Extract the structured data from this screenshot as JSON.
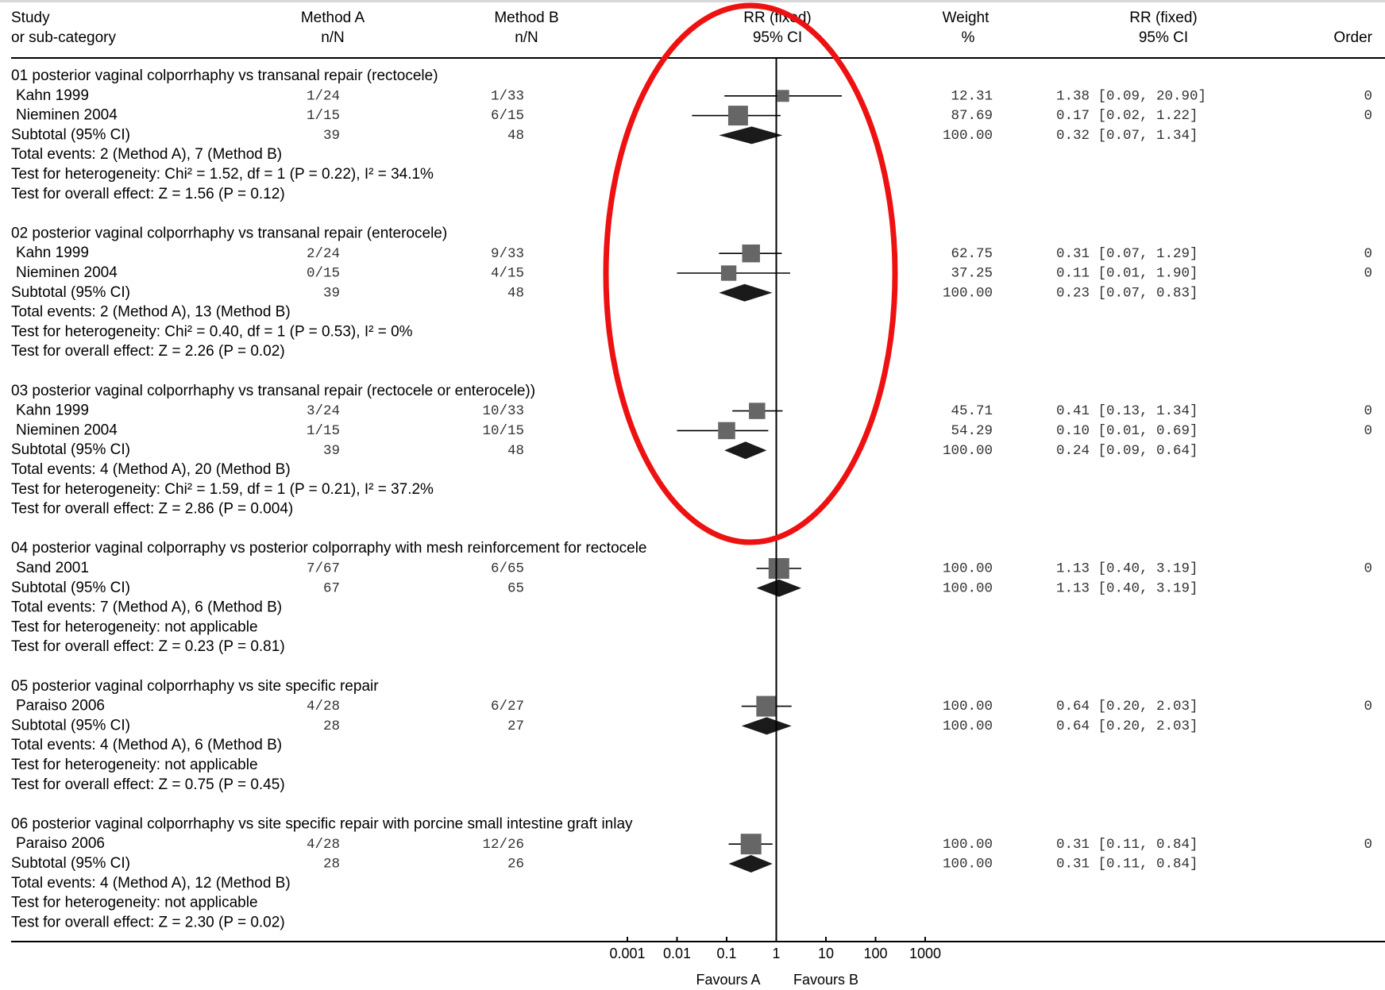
{
  "header": {
    "study": [
      "Study",
      "or sub-category"
    ],
    "method_a": [
      "Method A",
      "n/N"
    ],
    "method_b": [
      "Method B",
      "n/N"
    ],
    "rr_plot": [
      "RR (fixed)",
      "95% CI"
    ],
    "weight": [
      "Weight",
      "%"
    ],
    "rr_text": [
      "RR (fixed)",
      "95% CI"
    ],
    "order": "Order"
  },
  "axis": {
    "ticks": [
      "0.001",
      "0.01",
      "0.1",
      "1",
      "10",
      "100",
      "1000"
    ],
    "tick_values": [
      0.001,
      0.01,
      0.1,
      1,
      10,
      100,
      1000
    ],
    "favours_a": "Favours A",
    "favours_b": "Favours B"
  },
  "colors": {
    "square": "#666666",
    "diamond": "#1a1a1a",
    "annotation_ellipse": "#ee1111"
  },
  "chart_data": {
    "type": "forest",
    "scale": "log",
    "xlim": [
      0.001,
      1000
    ],
    "null_line": 1,
    "groups": [
      {
        "title": "01 posterior vaginal colporrhaphy vs transanal repair (rectocele)",
        "studies": [
          {
            "name": "Kahn 1999",
            "a": "1/24",
            "b": "1/33",
            "rr": 1.38,
            "lo": 0.09,
            "hi": 20.9,
            "weight": 12.31,
            "weight_txt": "12.31",
            "ci_txt": "1.38 [0.09, 20.90]",
            "order": "0"
          },
          {
            "name": "Nieminen 2004",
            "a": "1/15",
            "b": "6/15",
            "rr": 0.17,
            "lo": 0.02,
            "hi": 1.22,
            "weight": 87.69,
            "weight_txt": "87.69",
            "ci_txt": "0.17 [0.02, 1.22]",
            "order": "0"
          }
        ],
        "subtotal": {
          "label": "Subtotal (95% CI)",
          "a": "39",
          "b": "48",
          "rr": 0.32,
          "lo": 0.07,
          "hi": 1.34,
          "weight_txt": "100.00",
          "ci_txt": "0.32 [0.07, 1.34]"
        },
        "notes": [
          "Total events: 2 (Method A), 7 (Method B)",
          "Test for heterogeneity: Chi² = 1.52, df = 1 (P = 0.22), I² = 34.1%",
          "Test for overall effect: Z = 1.56 (P = 0.12)"
        ]
      },
      {
        "title": "02 posterior vaginal colporrhaphy vs transanal repair (enterocele)",
        "studies": [
          {
            "name": "Kahn 1999",
            "a": "2/24",
            "b": "9/33",
            "rr": 0.31,
            "lo": 0.07,
            "hi": 1.29,
            "weight": 62.75,
            "weight_txt": "62.75",
            "ci_txt": "0.31 [0.07, 1.29]",
            "order": "0"
          },
          {
            "name": "Nieminen 2004",
            "a": "0/15",
            "b": "4/15",
            "rr": 0.11,
            "lo": 0.01,
            "hi": 1.9,
            "weight": 37.25,
            "weight_txt": "37.25",
            "ci_txt": "0.11 [0.01, 1.90]",
            "order": "0"
          }
        ],
        "subtotal": {
          "label": "Subtotal (95% CI)",
          "a": "39",
          "b": "48",
          "rr": 0.23,
          "lo": 0.07,
          "hi": 0.83,
          "weight_txt": "100.00",
          "ci_txt": "0.23 [0.07, 0.83]"
        },
        "notes": [
          "Total events: 2 (Method A), 13 (Method B)",
          "Test for heterogeneity: Chi² = 0.40, df = 1 (P = 0.53), I² = 0%",
          "Test for overall effect: Z = 2.26 (P = 0.02)"
        ]
      },
      {
        "title": "03 posterior vaginal colporrhaphy vs transanal repair (rectocele or enterocele))",
        "studies": [
          {
            "name": "Kahn 1999",
            "a": "3/24",
            "b": "10/33",
            "rr": 0.41,
            "lo": 0.13,
            "hi": 1.34,
            "weight": 45.71,
            "weight_txt": "45.71",
            "ci_txt": "0.41 [0.13, 1.34]",
            "order": "0"
          },
          {
            "name": "Nieminen 2004",
            "a": "1/15",
            "b": "10/15",
            "rr": 0.1,
            "lo": 0.01,
            "hi": 0.69,
            "weight": 54.29,
            "weight_txt": "54.29",
            "ci_txt": "0.10 [0.01, 0.69]",
            "order": "0"
          }
        ],
        "subtotal": {
          "label": "Subtotal (95% CI)",
          "a": "39",
          "b": "48",
          "rr": 0.24,
          "lo": 0.09,
          "hi": 0.64,
          "weight_txt": "100.00",
          "ci_txt": "0.24 [0.09, 0.64]"
        },
        "notes": [
          "Total events: 4 (Method A), 20 (Method B)",
          "Test for heterogeneity: Chi² = 1.59, df = 1 (P = 0.21), I² = 37.2%",
          "Test for overall effect: Z = 2.86 (P = 0.004)"
        ]
      },
      {
        "title": "04 posterior vaginal colporraphy vs posterior colporraphy with mesh reinforcement for rectocele",
        "studies": [
          {
            "name": "Sand 2001",
            "a": "7/67",
            "b": "6/65",
            "rr": 1.13,
            "lo": 0.4,
            "hi": 3.19,
            "weight": 100.0,
            "weight_txt": "100.00",
            "ci_txt": "1.13 [0.40, 3.19]",
            "order": "0"
          }
        ],
        "subtotal": {
          "label": "Subtotal (95% CI)",
          "a": "67",
          "b": "65",
          "rr": 1.13,
          "lo": 0.4,
          "hi": 3.19,
          "weight_txt": "100.00",
          "ci_txt": "1.13 [0.40, 3.19]"
        },
        "notes": [
          "Total events: 7 (Method A), 6 (Method B)",
          "Test for heterogeneity: not applicable",
          "Test for overall effect: Z = 0.23 (P = 0.81)"
        ]
      },
      {
        "title": "05 posterior vaginal colporrhaphy vs site specific repair",
        "studies": [
          {
            "name": "Paraiso 2006",
            "a": "4/28",
            "b": "6/27",
            "rr": 0.64,
            "lo": 0.2,
            "hi": 2.03,
            "weight": 100.0,
            "weight_txt": "100.00",
            "ci_txt": "0.64 [0.20, 2.03]",
            "order": "0"
          }
        ],
        "subtotal": {
          "label": "Subtotal (95% CI)",
          "a": "28",
          "b": "27",
          "rr": 0.64,
          "lo": 0.2,
          "hi": 2.03,
          "weight_txt": "100.00",
          "ci_txt": "0.64 [0.20, 2.03]"
        },
        "notes": [
          "Total events: 4 (Method A), 6 (Method B)",
          "Test for heterogeneity: not applicable",
          "Test for overall effect: Z = 0.75 (P = 0.45)"
        ]
      },
      {
        "title": "06 posterior vaginal colporrhaphy vs site specific repair with porcine small intestine graft inlay",
        "studies": [
          {
            "name": "Paraiso 2006",
            "a": "4/28",
            "b": "12/26",
            "rr": 0.31,
            "lo": 0.11,
            "hi": 0.84,
            "weight": 100.0,
            "weight_txt": "100.00",
            "ci_txt": "0.31 [0.11, 0.84]",
            "order": "0"
          }
        ],
        "subtotal": {
          "label": "Subtotal (95% CI)",
          "a": "28",
          "b": "26",
          "rr": 0.31,
          "lo": 0.11,
          "hi": 0.84,
          "weight_txt": "100.00",
          "ci_txt": "0.31 [0.11, 0.84]"
        },
        "notes": [
          "Total events: 4 (Method A), 12 (Method B)",
          "Test for heterogeneity: not applicable",
          "Test for overall effect: Z = 2.30 (P = 0.02)"
        ]
      }
    ]
  }
}
